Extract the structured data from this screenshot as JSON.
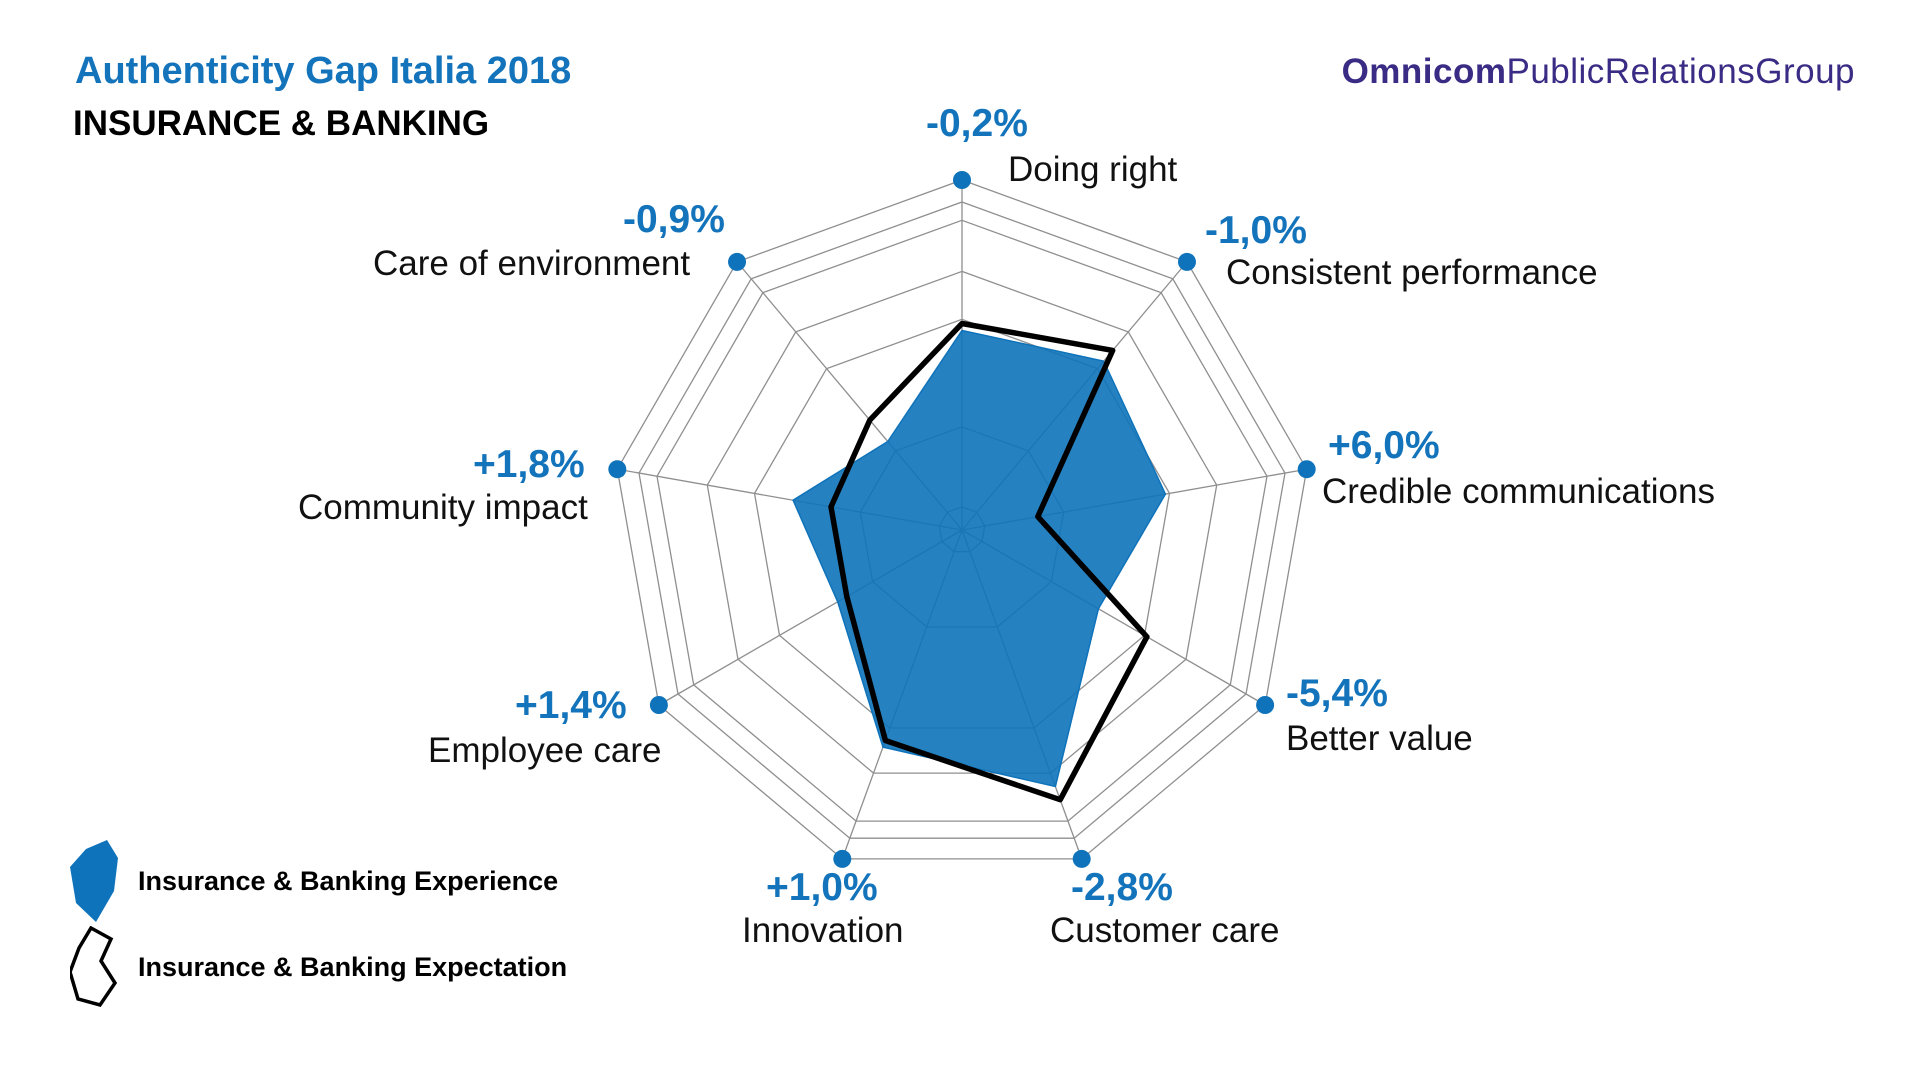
{
  "header": {
    "title": "Authenticity Gap Italia 2018",
    "subtitle": "INSURANCE & BANKING"
  },
  "logo": {
    "bold": "Omnicom",
    "light": "PublicRelationsGroup"
  },
  "legend": [
    {
      "label": "Insurance & Banking Experience"
    },
    {
      "label": "Insurance & Banking Expectation"
    }
  ],
  "colors": {
    "brand_blue": "#0E73BA",
    "label_blue": "#1373BB",
    "expectation_black": "#000000",
    "grid_gray": "#8F8F8F",
    "logo_purple": "#3A2B84",
    "text_black": "#111111"
  },
  "chart_data": {
    "type": "radar",
    "title": "Authenticity Gap Italia 2018 - Insurance & Banking",
    "categories": [
      "Doing right",
      "Consistent performance",
      "Credible communications",
      "Better value",
      "Customer care",
      "Innovation",
      "Employee care",
      "Community impact",
      "Care of environment"
    ],
    "gap_labels": [
      "-0,2%",
      "-1,0%",
      "+6,0%",
      "-5,4%",
      "-2,8%",
      "+1,0%",
      "+1,4%",
      "+1,8%",
      "-0,9%"
    ],
    "series": [
      {
        "name": "Insurance & Banking Experience",
        "style": "filled",
        "values": [
          0.57,
          0.63,
          0.59,
          0.45,
          0.78,
          0.66,
          0.41,
          0.49,
          0.33
        ]
      },
      {
        "name": "Insurance & Banking Expectation",
        "style": "outline",
        "values": [
          0.59,
          0.67,
          0.22,
          0.61,
          0.82,
          0.64,
          0.38,
          0.38,
          0.41
        ]
      }
    ],
    "value_scale": "radius_fraction_0_to_1_as_drawn",
    "grid_rings_radius_fraction": [
      1.0,
      0.937,
      0.885,
      0.739,
      0.602,
      0.295,
      0.066
    ],
    "start_axis": "top",
    "direction": "clockwise",
    "axis_count": 9,
    "legend_position": "bottom-left"
  }
}
